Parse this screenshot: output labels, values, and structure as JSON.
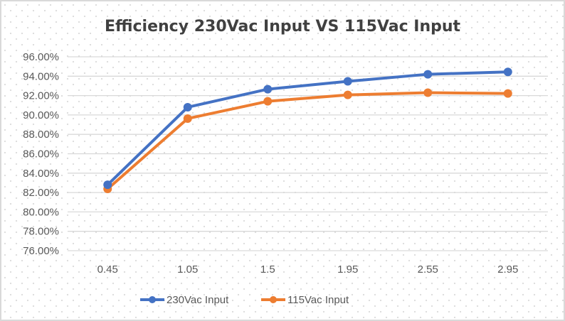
{
  "chart_data": {
    "type": "line",
    "title": "Efficiency  230Vac Input VS 115Vac Input",
    "xlabel": "",
    "ylabel": "",
    "categories": [
      "0.45",
      "1.05",
      "1.5",
      "1.95",
      "2.55",
      "2.95"
    ],
    "ylim": [
      0.76,
      0.96
    ],
    "yticks": [
      0.76,
      0.78,
      0.8,
      0.82,
      0.84,
      0.86,
      0.88,
      0.9,
      0.92,
      0.94,
      0.96
    ],
    "ytick_labels": [
      "76.00%",
      "78.00%",
      "80.00%",
      "82.00%",
      "84.00%",
      "86.00%",
      "88.00%",
      "90.00%",
      "92.00%",
      "94.00%",
      "96.00%"
    ],
    "grid": "horizontal",
    "legend_position": "bottom",
    "series": [
      {
        "name": "230Vac Input",
        "color": "#4472c4",
        "values": [
          0.828,
          0.908,
          0.9266,
          0.9347,
          0.942,
          0.9444
        ]
      },
      {
        "name": "115Vac Input",
        "color": "#ed7d31",
        "values": [
          0.8237,
          0.8963,
          0.9141,
          0.9207,
          0.923,
          0.9222
        ]
      }
    ]
  }
}
